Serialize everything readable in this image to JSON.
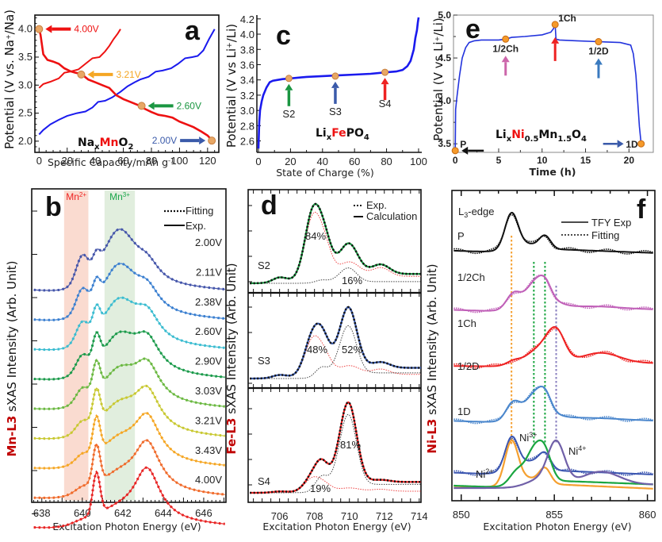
{
  "chart_data": [
    {
      "panel": "a",
      "type": "line",
      "material": {
        "prefix": "Na",
        "sub": "x",
        "highlight": "Mn",
        "suffix": "O",
        "suffix_sub": "2"
      },
      "xlabel": "Specific Capacity/mAh g",
      "xlabel_sup": "-1",
      "ylabel": "Potential (V vs. Na+/Na)",
      "xlim": [
        -3,
        128
      ],
      "ylim": [
        1.8,
        4.25
      ],
      "xticks": [
        0,
        20,
        40,
        60,
        80,
        100,
        120
      ],
      "yticks": [
        2.0,
        2.5,
        3.0,
        3.5,
        4.0
      ],
      "series": [
        {
          "name": "charge-red",
          "color": "#ee1111",
          "x": [
            0,
            3,
            8,
            14,
            18,
            22,
            28,
            33,
            38,
            43,
            47,
            50,
            53,
            56,
            58
          ],
          "y": [
            2.95,
            3.02,
            3.06,
            3.12,
            3.22,
            3.24,
            3.28,
            3.38,
            3.48,
            3.5,
            3.6,
            3.7,
            3.82,
            3.92,
            4.0
          ]
        },
        {
          "name": "charge-blue",
          "color": "#1a1aee",
          "x": [
            0,
            3,
            8,
            14,
            20,
            27,
            33,
            38,
            42,
            47,
            52,
            58,
            63,
            68,
            72,
            78,
            83,
            88,
            94,
            99,
            104,
            109,
            113,
            117,
            121,
            125
          ],
          "y": [
            2.12,
            2.2,
            2.3,
            2.38,
            2.45,
            2.5,
            2.53,
            2.6,
            2.7,
            2.72,
            2.78,
            2.88,
            2.98,
            3.05,
            3.1,
            3.15,
            3.24,
            3.26,
            3.3,
            3.38,
            3.48,
            3.5,
            3.52,
            3.62,
            3.82,
            4.0
          ]
        },
        {
          "name": "discharge-blue",
          "color": "#1a1aee",
          "x": [
            0,
            1,
            3,
            6,
            10,
            14,
            18,
            22,
            26,
            30,
            35,
            40,
            45,
            50,
            55,
            60,
            65,
            70,
            75,
            80,
            85,
            90,
            95,
            100,
            105,
            110,
            115,
            120,
            123
          ],
          "y": [
            4.0,
            3.9,
            3.55,
            3.45,
            3.42,
            3.38,
            3.3,
            3.25,
            3.22,
            3.2,
            3.1,
            3.05,
            3.0,
            2.95,
            2.82,
            2.75,
            2.7,
            2.65,
            2.58,
            2.52,
            2.47,
            2.45,
            2.42,
            2.35,
            2.3,
            2.25,
            2.18,
            2.1,
            2.02
          ]
        },
        {
          "name": "discharge-red",
          "color": "#ee1111",
          "x": [
            0,
            1,
            3,
            6,
            10,
            14,
            18,
            22,
            26,
            30,
            35,
            40,
            45,
            50,
            55,
            60,
            65,
            70,
            75,
            80,
            85,
            90,
            95,
            100,
            105,
            110,
            115,
            120,
            123
          ],
          "y": [
            4.0,
            3.9,
            3.55,
            3.45,
            3.42,
            3.38,
            3.3,
            3.25,
            3.22,
            3.2,
            3.1,
            3.05,
            3.0,
            2.95,
            2.82,
            2.75,
            2.7,
            2.65,
            2.58,
            2.52,
            2.47,
            2.45,
            2.42,
            2.35,
            2.3,
            2.25,
            2.18,
            2.1,
            2.02
          ]
        }
      ],
      "markers": [
        {
          "x": 0,
          "y": 4.0,
          "label": "4.00V",
          "color": "#ee1111",
          "arrow": "left"
        },
        {
          "x": 30,
          "y": 3.19,
          "label": "3.21V",
          "color": "#f5a623",
          "arrow": "left"
        },
        {
          "x": 73,
          "y": 2.63,
          "label": "2.60V",
          "color": "#1a9641",
          "arrow": "left"
        },
        {
          "x": 123,
          "y": 2.01,
          "label": "2.00V",
          "color": "#3a5aaa",
          "arrow": "right"
        }
      ]
    },
    {
      "panel": "c",
      "type": "line",
      "material": {
        "prefix": "Li",
        "sub": "x",
        "highlight": "Fe",
        "suffix": "PO",
        "suffix_sub": "4"
      },
      "xlabel": "State of Charge (%)",
      "ylabel": "Potential (V vs Li+/Li)",
      "xlim": [
        -1,
        102
      ],
      "ylim": [
        2.45,
        4.25
      ],
      "xticks": [
        0,
        20,
        40,
        60,
        80,
        100
      ],
      "yticks": [
        2.6,
        2.8,
        3.0,
        3.2,
        3.4,
        3.6,
        3.8,
        4.0,
        4.2
      ],
      "series": [
        {
          "name": "LiFePO4",
          "color": "#1a1aee",
          "x": [
            0,
            0.5,
            1,
            2,
            3,
            5,
            7,
            9,
            12,
            15,
            20,
            30,
            40,
            50,
            60,
            70,
            80,
            86,
            90,
            93,
            95,
            97,
            98,
            99,
            99.5,
            100
          ],
          "y": [
            2.5,
            2.85,
            3.0,
            3.12,
            3.2,
            3.3,
            3.37,
            3.39,
            3.4,
            3.41,
            3.42,
            3.44,
            3.45,
            3.46,
            3.47,
            3.48,
            3.5,
            3.51,
            3.53,
            3.58,
            3.65,
            3.8,
            3.95,
            4.05,
            4.15,
            4.22
          ]
        }
      ],
      "markers": [
        {
          "x": 19,
          "y": 3.42,
          "label": "S2",
          "color": "#1a9641"
        },
        {
          "x": 48,
          "y": 3.45,
          "label": "S3",
          "color": "#3a5aaa"
        },
        {
          "x": 79,
          "y": 3.5,
          "label": "S4",
          "color": "#ee2222"
        }
      ]
    },
    {
      "panel": "e",
      "type": "line",
      "material": {
        "prefix": "Li",
        "sub": "x",
        "highlight": "Ni",
        "highlight_sub": "0.5",
        "suffix": "Mn",
        "suffix_sub": "1.5",
        "suffix2": "O",
        "suffix2_sub": "4"
      },
      "xlabel": "Time (h)",
      "ylabel": "Potential (V vs Li+/Li)",
      "xlim": [
        -0.2,
        22.8
      ],
      "ylim": [
        3.4,
        5.0
      ],
      "xticks": [
        0,
        5,
        10,
        15,
        20
      ],
      "yticks": [
        3.5,
        4.0,
        4.5,
        5.0
      ],
      "series": [
        {
          "name": "LNMO",
          "color": "#2233dd",
          "x": [
            0,
            0.05,
            0.2,
            0.5,
            0.8,
            1.2,
            1.6,
            2.2,
            3,
            4,
            5,
            5.8,
            6.5,
            8,
            10,
            11,
            11.3,
            11.5,
            11.6,
            12,
            14,
            16.5,
            19,
            20.2,
            20.5,
            20.8,
            21,
            21.2,
            21.4
          ],
          "y": [
            3.42,
            3.9,
            4.05,
            4.3,
            4.5,
            4.62,
            4.68,
            4.7,
            4.71,
            4.71,
            4.71,
            4.72,
            4.74,
            4.75,
            4.77,
            4.8,
            4.84,
            4.89,
            4.72,
            4.71,
            4.7,
            4.69,
            4.68,
            4.65,
            4.55,
            4.3,
            4.0,
            3.7,
            3.5
          ]
        }
      ],
      "markers": [
        {
          "x": 0,
          "y": 3.42,
          "label": "P",
          "arrow_color": "#111111",
          "arrow": "left"
        },
        {
          "x": 5.8,
          "y": 4.72,
          "label": "1/2Ch",
          "arrow_color": "#cc66aa",
          "arrow": "up"
        },
        {
          "x": 11.5,
          "y": 4.89,
          "label": "1Ch",
          "arrow_color": "#ee2222",
          "arrow": "up"
        },
        {
          "x": 16.5,
          "y": 4.69,
          "label": "1/2D",
          "arrow_color": "#3a7abf",
          "arrow": "up"
        },
        {
          "x": 21.4,
          "y": 3.5,
          "label": "1D",
          "arrow_color": "#3a5aaa",
          "arrow": "right"
        }
      ]
    },
    {
      "panel": "b",
      "type": "line",
      "xlabel": "Excitation Photon  Energy (eV)",
      "ylabel_prefix": "Mn-L3",
      "ylabel_suffix": " sXAS Intensity (Arb. Unit)",
      "xlim": [
        637.5,
        647.1
      ],
      "xticks": [
        638,
        640,
        642,
        644,
        646
      ],
      "legend": {
        "dotted": "Fitting",
        "solid": "Exp.",
        "position": "top-right"
      },
      "bands": [
        {
          "label": "Mn",
          "sup": "2+",
          "range": [
            639.1,
            640.3
          ],
          "color": "#f9d5c8",
          "label_color": "#ee2222"
        },
        {
          "label": "Mn",
          "sup": "3+",
          "range": [
            641.1,
            642.6
          ],
          "color": "#dcebd8",
          "label_color": "#1aa64a"
        }
      ],
      "spectra": [
        {
          "label": "2.00V",
          "color": "#4455aa"
        },
        {
          "label": "2.11V",
          "color": "#3a7fd0"
        },
        {
          "label": "2.38V",
          "color": "#3abcd0"
        },
        {
          "label": "2.60V",
          "color": "#1a9a4a"
        },
        {
          "label": "2.90V",
          "color": "#6ab840"
        },
        {
          "label": "3.03V",
          "color": "#c8c830"
        },
        {
          "label": "3.21V",
          "color": "#f5a623"
        },
        {
          "label": "3.43V",
          "color": "#f06a2a"
        },
        {
          "label": "4.00V",
          "color": "#e82424"
        }
      ]
    },
    {
      "panel": "d",
      "type": "line",
      "xlabel": "Excitation Photon  Energy (eV)",
      "ylabel_prefix": "Fe-L3",
      "ylabel_suffix": " sXAS Intensity (Arb. Unit)",
      "xlim": [
        704.2,
        714.1
      ],
      "xticks": [
        706,
        708,
        710,
        712,
        714
      ],
      "legend": {
        "dotted": "Exp.",
        "solid": "Calculation",
        "position": "top-right"
      },
      "subpanels": [
        {
          "label": "S2",
          "color": "#1a9641",
          "fe2_pct": "84%",
          "fe3_pct": "16%"
        },
        {
          "label": "S3",
          "color": "#3a5aaa",
          "fe2_pct": "48%",
          "fe3_pct": "52%"
        },
        {
          "label": "S4",
          "color": "#ee2222",
          "fe2_pct": "19%",
          "fe3_pct": "81%"
        }
      ]
    },
    {
      "panel": "f",
      "type": "line",
      "xlabel": "Excitation Photon  Energy (eV)",
      "ylabel_prefix": "Ni-L3",
      "ylabel_suffix": " sXAS Intensity (Arb. Unit)",
      "xlim": [
        849.5,
        860.4
      ],
      "xticks": [
        850,
        855,
        860
      ],
      "edge_label": "L3-edge",
      "legend": {
        "solid": "TFY Exp",
        "dotted": "Fitting",
        "position": "top-right"
      },
      "spectra": [
        {
          "label": "P",
          "color": "#111111"
        },
        {
          "label": "1/2Ch",
          "color": "#c060b8"
        },
        {
          "label": "1Ch",
          "color": "#ee2222"
        },
        {
          "label": "1/2D",
          "color": "#4a86cc"
        },
        {
          "label": "1D",
          "color": "#3a55b0"
        }
      ],
      "references": [
        {
          "label": "Ni",
          "sup": "2+",
          "color": "#f5a030",
          "peak": 852.7
        },
        {
          "label": "Ni",
          "sup": "3+",
          "color": "#1aa640",
          "peak": 853.9
        },
        {
          "label": "Ni",
          "sup": "4+",
          "color": "#7060a8",
          "peak": 855.1
        }
      ],
      "guide_lines": [
        852.7,
        853.9,
        854.5,
        855.1
      ]
    }
  ]
}
